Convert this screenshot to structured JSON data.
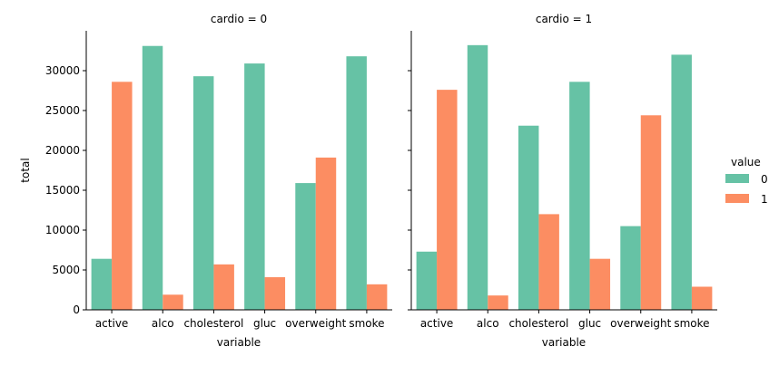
{
  "chart_data": {
    "type": "bar",
    "legend": {
      "title": "value",
      "entries": [
        {
          "name": "0",
          "color": "#66c2a5"
        },
        {
          "name": "1",
          "color": "#fc8d62"
        }
      ],
      "placement": "right"
    },
    "categories": [
      "active",
      "alco",
      "cholesterol",
      "gluc",
      "overweight",
      "smoke"
    ],
    "ylim": [
      0,
      35000
    ],
    "yticks": [
      0,
      5000,
      10000,
      15000,
      20000,
      25000,
      30000
    ],
    "ylabel": "total",
    "xlabel": "variable",
    "panels": [
      {
        "title": "cardio = 0",
        "series": [
          {
            "name": "0",
            "values": [
              6400,
              33100,
              29300,
              30900,
              15900,
              31800
            ]
          },
          {
            "name": "1",
            "values": [
              28600,
              1900,
              5700,
              4100,
              19100,
              3200
            ]
          }
        ]
      },
      {
        "title": "cardio = 1",
        "series": [
          {
            "name": "0",
            "values": [
              7300,
              33200,
              23100,
              28600,
              10500,
              32000
            ]
          },
          {
            "name": "1",
            "values": [
              27600,
              1800,
              12000,
              6400,
              24400,
              2900
            ]
          }
        ]
      }
    ]
  }
}
